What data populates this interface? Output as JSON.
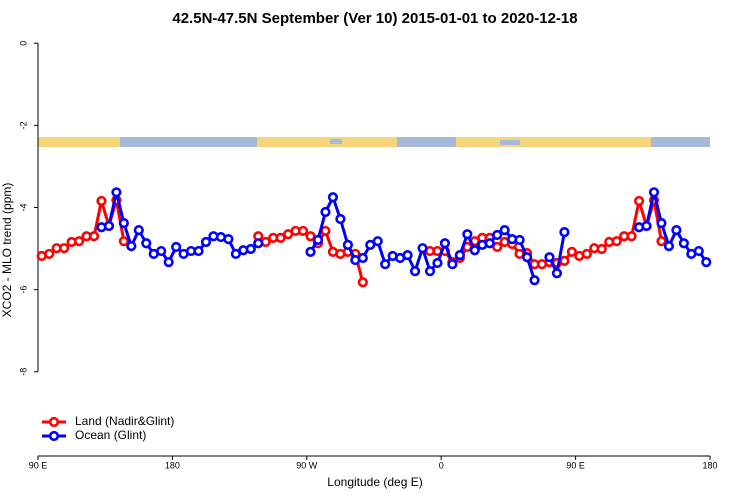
{
  "chart_data": {
    "type": "line",
    "title": "42.5N-47.5N September (Ver 10)   2015-01-01 to 2020-12-18",
    "x_label": "Longitude (deg E)",
    "y_label": "XCO2 - MLO trend (ppm)",
    "xlim": [
      90,
      540
    ],
    "xticks": [
      {
        "value": 90,
        "label": "90 E"
      },
      {
        "value": 180,
        "label": "180"
      },
      {
        "value": 270,
        "label": "90 W"
      },
      {
        "value": 360,
        "label": "0"
      },
      {
        "value": 450,
        "label": "90 E"
      },
      {
        "value": 540,
        "label": "180"
      }
    ],
    "ylim": [
      -10.05,
      0.2
    ],
    "yticks": [
      0,
      -2,
      -4,
      -6,
      -8
    ],
    "legend": "bottom-left",
    "series": [
      {
        "name": "Land (Nadir&Glint)",
        "color": "#ff0000",
        "x": [
          92.5,
          97.5,
          102.5,
          107.5,
          112.5,
          117.5,
          122.5,
          127.5,
          132.5,
          137.5,
          142.5,
          147.5,
          150,
          237.5,
          242.5,
          247.5,
          252.5,
          257.5,
          262.5,
          267.5,
          272.5,
          277.5,
          282.5,
          287.5,
          292.5,
          297.5,
          302.5,
          307.5,
          330,
          352.5,
          357.5,
          362.5,
          367.5,
          372.5,
          377.5,
          382.5,
          387.5,
          392.5,
          397.5,
          402.5,
          407.5,
          412.5,
          417.5,
          422.5,
          427.5,
          432.5,
          437.5,
          442.5,
          447.5,
          452.5,
          457.5,
          462.5,
          467.5,
          472.5,
          477.5,
          482.5,
          487.5,
          492.5,
          497.5,
          502.5,
          507.5
        ],
        "values": [
          -5.18,
          -5.13,
          -4.99,
          -4.99,
          -4.84,
          -4.82,
          -4.7,
          -4.7,
          -3.84,
          -4.45,
          -3.82,
          -4.82,
          null,
          -4.7,
          -4.84,
          -4.74,
          -4.74,
          -4.65,
          -4.57,
          -4.57,
          -4.7,
          -4.87,
          -4.57,
          -5.08,
          -5.13,
          -5.08,
          -5.13,
          -5.82,
          null,
          -5.06,
          -5.06,
          -5.06,
          -5.33,
          -5.23,
          -4.96,
          -4.82,
          -4.74,
          -4.74,
          -4.96,
          -4.84,
          -4.89,
          -5.13,
          -5.11,
          -5.38,
          -5.38,
          -5.33,
          -5.35,
          -5.3,
          -5.08,
          -5.18,
          -5.13,
          -4.99,
          -5.01,
          -4.84,
          -4.82,
          -4.7,
          -4.7,
          -3.84,
          -4.45,
          -3.82,
          -4.82
        ]
      },
      {
        "name": "Ocean (Glint)",
        "color": "#0000ff",
        "x": [
          132.5,
          137.5,
          142.5,
          147.5,
          152.5,
          157.5,
          162.5,
          167.5,
          172.5,
          177.5,
          182.5,
          187.5,
          192.5,
          197.5,
          202.5,
          207.5,
          212.5,
          217.5,
          222.5,
          227.5,
          232.5,
          237.5,
          255,
          272.5,
          277.5,
          282.5,
          287.5,
          292.5,
          297.5,
          302.5,
          307.5,
          312.5,
          317.5,
          322.5,
          327.5,
          332.5,
          337.5,
          342.5,
          347.5,
          352.5,
          357.5,
          362.5,
          367.5,
          372.5,
          377.5,
          382.5,
          387.5,
          392.5,
          397.5,
          402.5,
          407.5,
          412.5,
          417.5,
          422.5,
          427.5,
          432.5,
          437.5,
          442.5,
          465,
          492.5,
          497.5,
          502.5,
          507.5,
          512.5,
          517.5,
          522.5,
          527.5,
          532.5,
          537.5
        ],
        "values": [
          -4.48,
          -4.45,
          -3.63,
          -4.38,
          -4.94,
          -4.55,
          -4.87,
          -5.13,
          -5.06,
          -5.33,
          -4.96,
          -5.13,
          -5.06,
          -5.06,
          -4.84,
          -4.7,
          -4.72,
          -4.77,
          -5.13,
          -5.04,
          -5.01,
          -4.87,
          null,
          -5.08,
          -4.79,
          -4.11,
          -3.75,
          -4.28,
          -4.91,
          -5.28,
          -5.23,
          -4.91,
          -4.82,
          -5.38,
          -5.18,
          -5.23,
          -5.16,
          -5.55,
          -4.99,
          -5.55,
          -5.35,
          -4.87,
          -5.38,
          -5.16,
          -4.65,
          -5.04,
          -4.91,
          -4.87,
          -4.67,
          -4.55,
          -4.77,
          -4.79,
          -5.21,
          -5.77,
          null,
          -5.21,
          -5.6,
          -4.6,
          null,
          -4.48,
          -4.45,
          -3.63,
          -4.38,
          -4.94,
          -4.55,
          -4.87,
          -5.13,
          -5.06,
          -5.33
        ]
      }
    ]
  }
}
